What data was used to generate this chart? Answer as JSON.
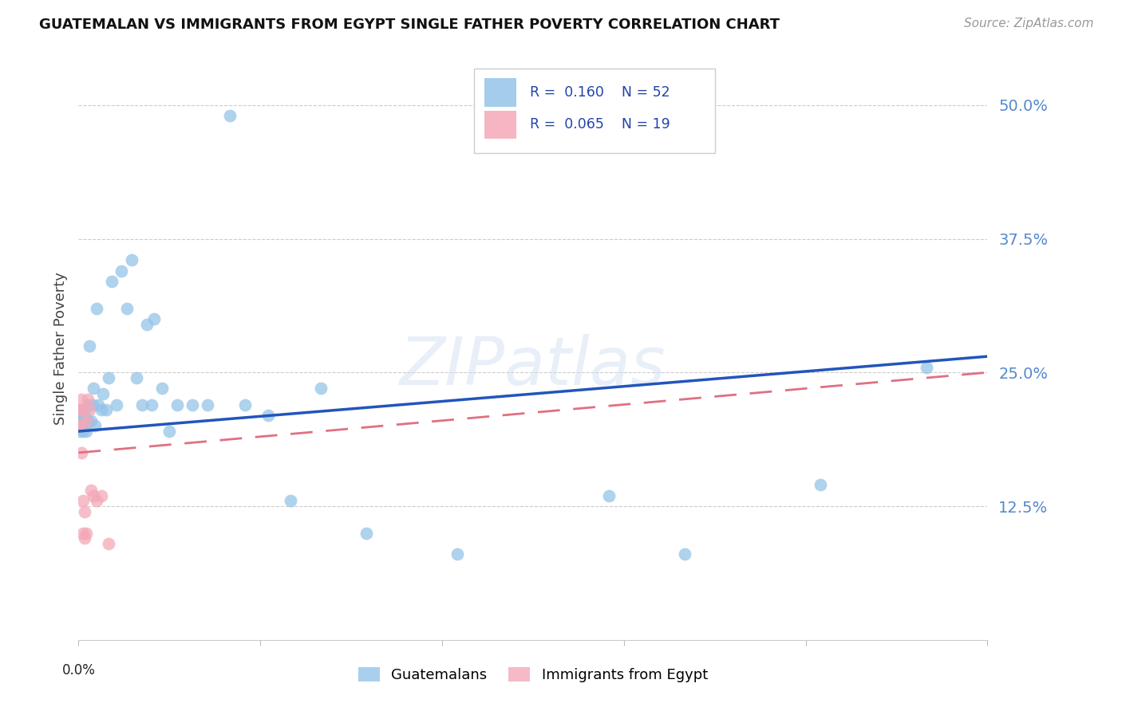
{
  "title": "GUATEMALAN VS IMMIGRANTS FROM EGYPT SINGLE FATHER POVERTY CORRELATION CHART",
  "source": "Source: ZipAtlas.com",
  "ylabel": "Single Father Poverty",
  "ytick_values": [
    0.125,
    0.25,
    0.375,
    0.5
  ],
  "ytick_labels": [
    "12.5%",
    "25.0%",
    "37.5%",
    "50.0%"
  ],
  "xlim": [
    0.0,
    0.6
  ],
  "ylim": [
    0.0,
    0.545
  ],
  "blue_color": "#94c4e8",
  "pink_color": "#f4a8b8",
  "blue_line_color": "#2255bb",
  "pink_line_color": "#e07080",
  "watermark": "ZIPatlas",
  "legend_r1": "R = 0.160",
  "legend_n1": "N = 52",
  "legend_r2": "R = 0.065",
  "legend_n2": "N = 19",
  "guatemalan_x": [
    0.001,
    0.001,
    0.002,
    0.002,
    0.002,
    0.003,
    0.003,
    0.003,
    0.004,
    0.004,
    0.004,
    0.005,
    0.005,
    0.006,
    0.006,
    0.007,
    0.008,
    0.009,
    0.01,
    0.011,
    0.012,
    0.013,
    0.015,
    0.016,
    0.018,
    0.02,
    0.022,
    0.025,
    0.028,
    0.032,
    0.035,
    0.038,
    0.042,
    0.045,
    0.048,
    0.05,
    0.055,
    0.06,
    0.065,
    0.075,
    0.085,
    0.1,
    0.11,
    0.125,
    0.14,
    0.16,
    0.19,
    0.25,
    0.35,
    0.4,
    0.49,
    0.56
  ],
  "guatemalan_y": [
    0.205,
    0.195,
    0.21,
    0.2,
    0.215,
    0.205,
    0.2,
    0.195,
    0.21,
    0.2,
    0.215,
    0.205,
    0.195,
    0.22,
    0.205,
    0.275,
    0.205,
    0.22,
    0.235,
    0.2,
    0.31,
    0.22,
    0.215,
    0.23,
    0.215,
    0.245,
    0.335,
    0.22,
    0.345,
    0.31,
    0.355,
    0.245,
    0.22,
    0.295,
    0.22,
    0.3,
    0.235,
    0.195,
    0.22,
    0.22,
    0.22,
    0.49,
    0.22,
    0.21,
    0.13,
    0.235,
    0.1,
    0.08,
    0.135,
    0.08,
    0.145,
    0.255
  ],
  "egypt_x": [
    0.001,
    0.001,
    0.001,
    0.002,
    0.002,
    0.002,
    0.003,
    0.003,
    0.004,
    0.004,
    0.005,
    0.005,
    0.006,
    0.007,
    0.008,
    0.01,
    0.012,
    0.015,
    0.02
  ],
  "egypt_y": [
    0.2,
    0.215,
    0.2,
    0.225,
    0.175,
    0.215,
    0.13,
    0.1,
    0.095,
    0.12,
    0.205,
    0.1,
    0.225,
    0.215,
    0.14,
    0.135,
    0.13,
    0.135,
    0.09
  ],
  "blue_trendline_x": [
    0.0,
    0.6
  ],
  "blue_trendline_y": [
    0.195,
    0.265
  ],
  "pink_trendline_x": [
    0.0,
    0.6
  ],
  "pink_trendline_y": [
    0.175,
    0.25
  ]
}
